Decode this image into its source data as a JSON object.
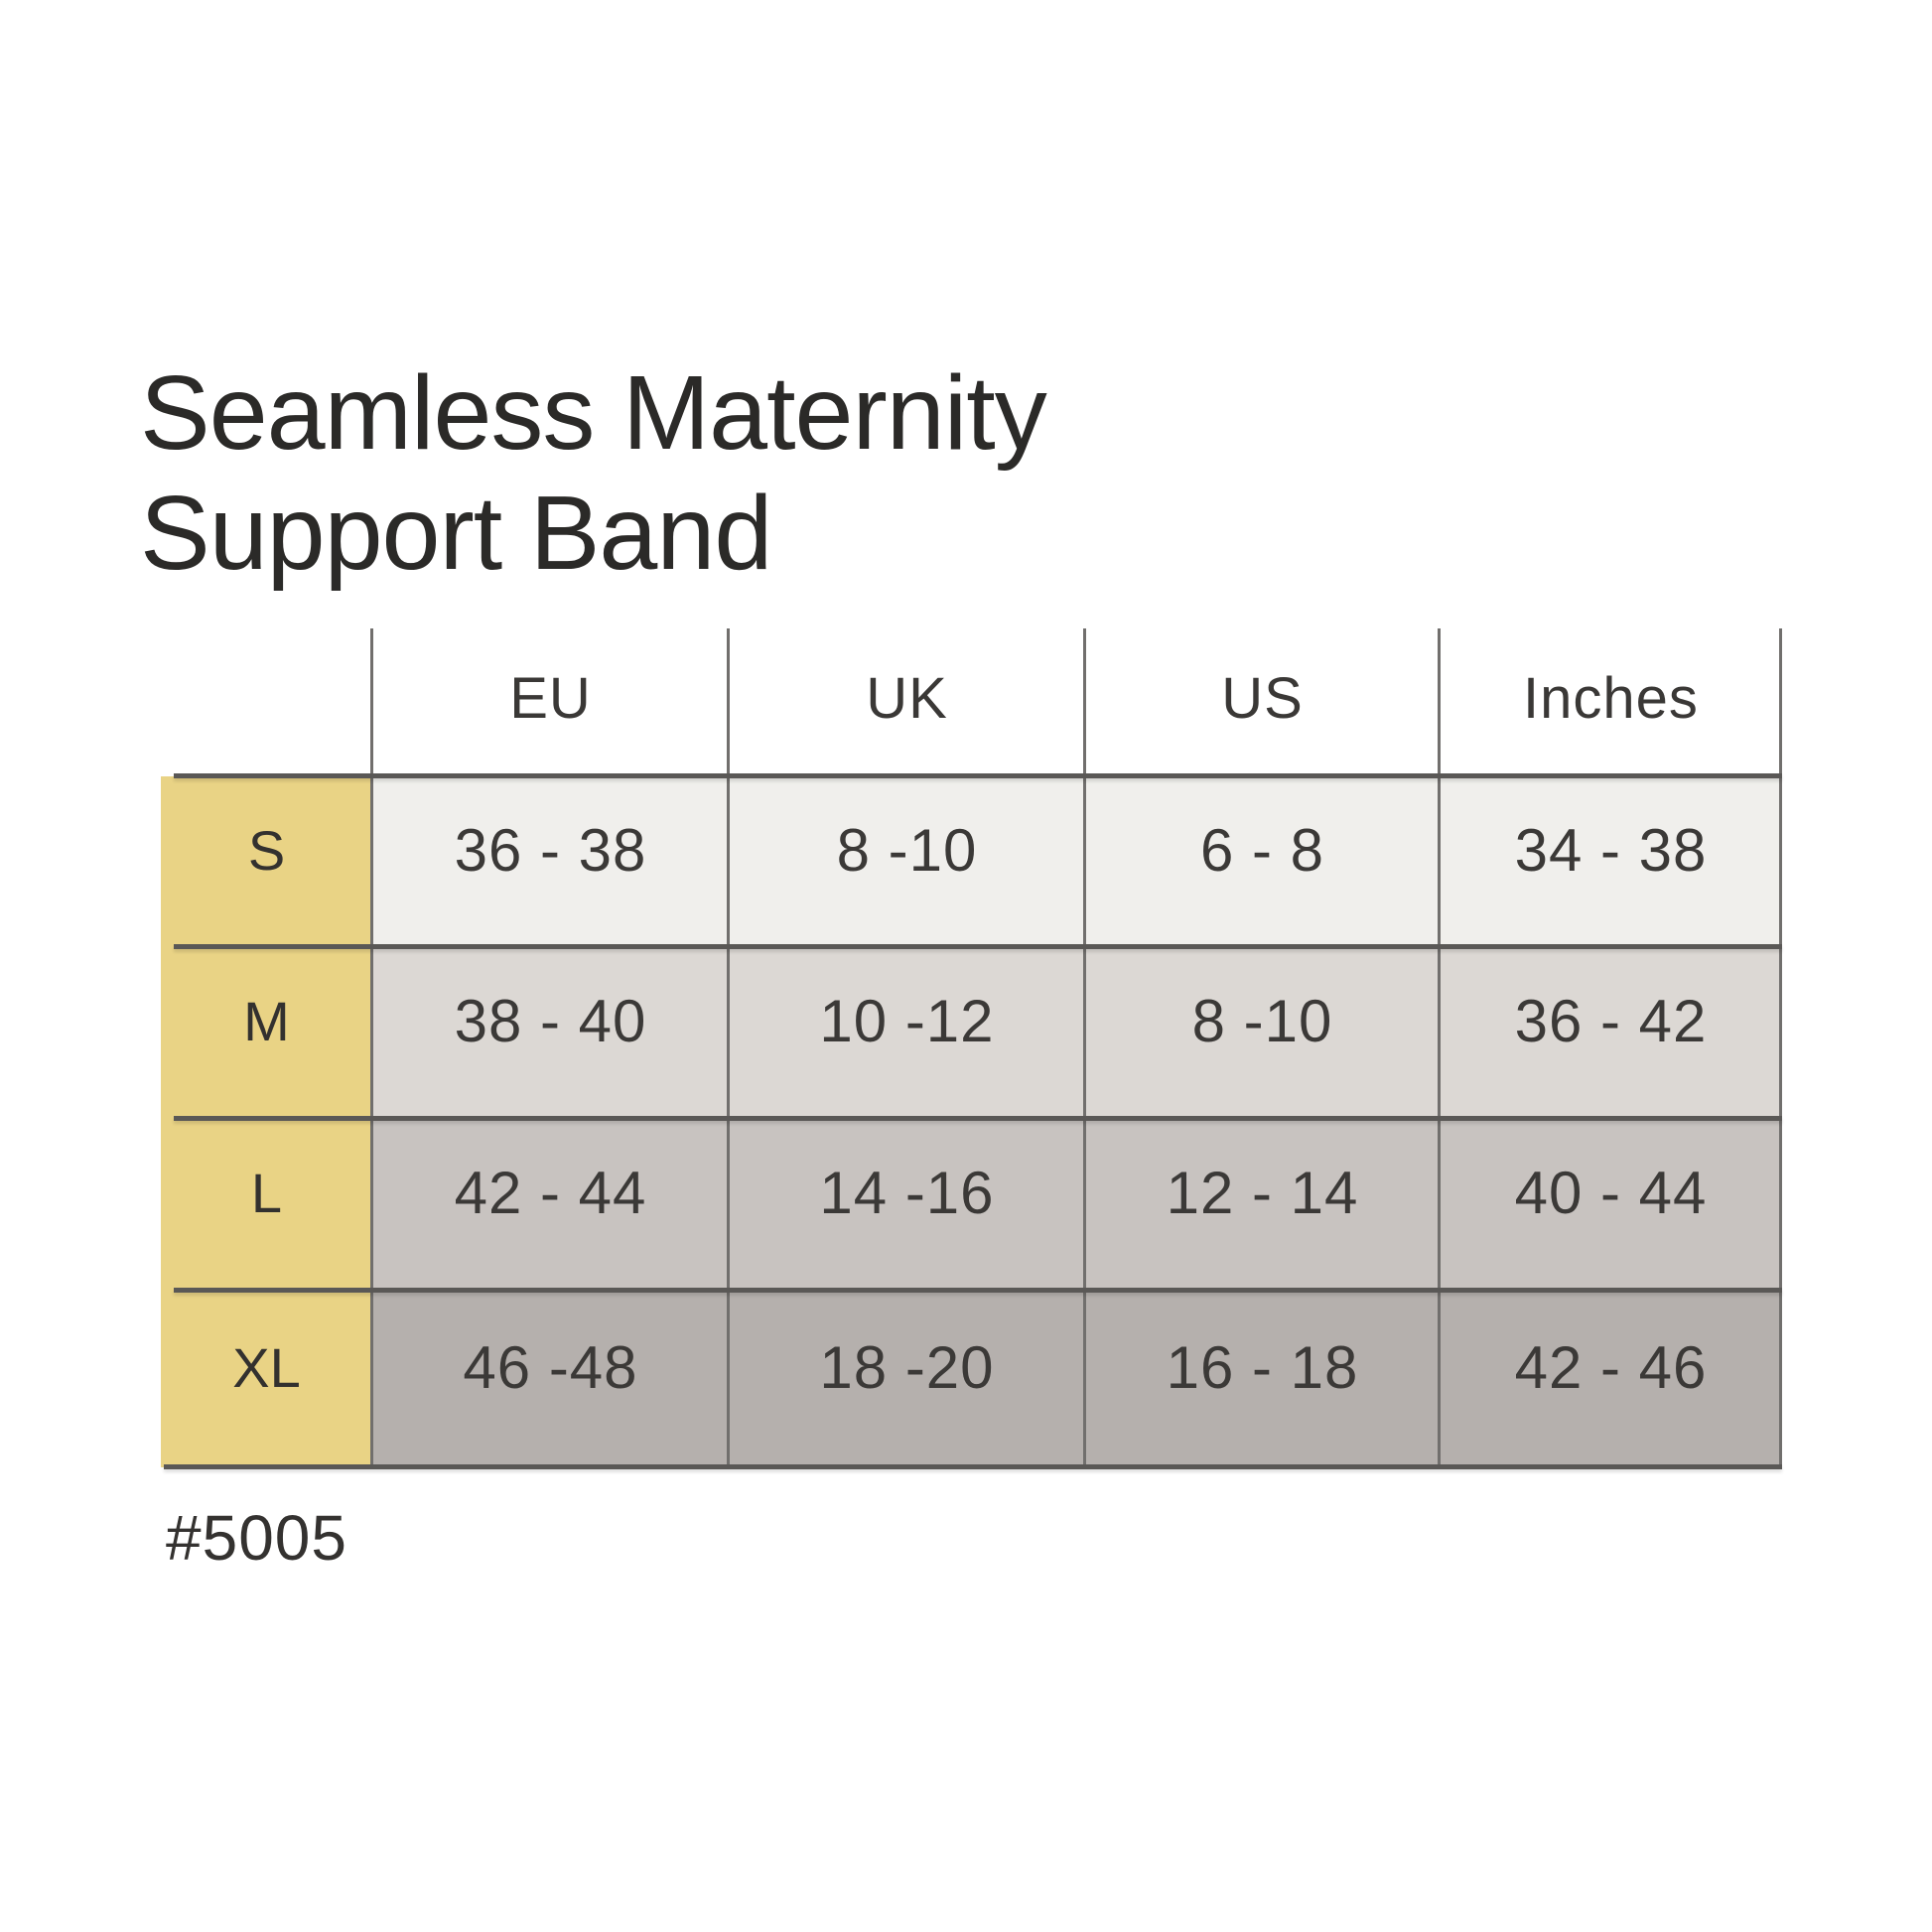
{
  "title": {
    "line1": "Seamless Maternity",
    "line2": "Support Band"
  },
  "product_code": "#5005",
  "chart_data": {
    "type": "table",
    "title": "Seamless Maternity Support Band",
    "column_headers": [
      "EU",
      "UK",
      "US",
      "Inches"
    ],
    "row_headers": [
      "S",
      "M",
      "L",
      "XL"
    ],
    "rows": [
      [
        "36 - 38",
        "8 -10",
        "6 - 8",
        "34 - 38"
      ],
      [
        "38 - 40",
        "10 -12",
        "8 -10",
        "36 - 42"
      ],
      [
        "42 - 44",
        "14 -16",
        "12 - 14",
        "40 - 44"
      ],
      [
        "46 -48",
        "18 -20",
        "16 - 18",
        "42 - 46"
      ]
    ]
  },
  "colors": {
    "size_column": "#e9d385",
    "row_s": "#f0efec",
    "row_m": "#dcd8d4",
    "row_l": "#c8c3c0",
    "row_xl": "#b5b0ad",
    "grid_line_h": "#5a5856",
    "grid_line_v": "#716f6d",
    "text": "#3b3937"
  }
}
